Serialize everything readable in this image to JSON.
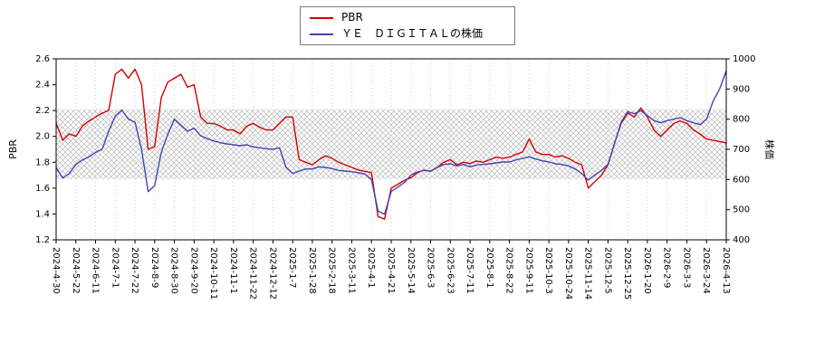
{
  "chart_data": {
    "type": "line",
    "title": "",
    "legend": [
      {
        "label": "PBR",
        "color": "#d40000"
      },
      {
        "label": "ＹＥ　ＤＩＧＩＴＡＬの株価",
        "color": "#4343b4"
      }
    ],
    "left_axis": {
      "label": "PBR",
      "min": 1.2,
      "max": 2.6,
      "ticks": [
        "1.2",
        "1.4",
        "1.6",
        "1.8",
        "2.0",
        "2.2",
        "2.4",
        "2.6"
      ]
    },
    "right_axis": {
      "label": "株価",
      "min": 400,
      "max": 1000,
      "ticks": [
        "400",
        "500",
        "600",
        "700",
        "800",
        "900",
        "1000"
      ]
    },
    "band": {
      "pbr_min": 1.67,
      "pbr_max": 2.21,
      "hatch_color": "#b8b8b8"
    },
    "grid": {
      "vertical_dotted": true,
      "color": "#cccccc"
    },
    "x_tick_labels": [
      "2024-4-30",
      "2024-5-22",
      "2024-6-11",
      "2024-7-1",
      "2024-7-22",
      "2024-8-9",
      "2024-8-30",
      "2024-9-20",
      "2024-10-11",
      "2024-11-1",
      "2024-11-22",
      "2024-12-12",
      "2025-1-7",
      "2025-1-28",
      "2025-2-18",
      "2025-3-11",
      "2025-4-1",
      "2025-4-21",
      "2025-5-14",
      "2025-6-3",
      "2025-6-23",
      "2025-7-11",
      "2025-8-1",
      "2025-8-22",
      "2025-9-11",
      "2025-10-3",
      "2025-10-24",
      "2025-11-14",
      "2025-12-5",
      "2025-12-25",
      "2026-1-20",
      "2026-2-9",
      "2026-3-3",
      "2026-3-24",
      "2026-4-13"
    ],
    "series": [
      {
        "name": "PBR",
        "axis": "left",
        "color": "#d40000",
        "values": [
          2.1,
          1.97,
          2.02,
          2.0,
          2.08,
          2.12,
          2.15,
          2.18,
          2.2,
          2.48,
          2.52,
          2.45,
          2.52,
          2.4,
          1.9,
          1.92,
          2.3,
          2.42,
          2.45,
          2.48,
          2.38,
          2.4,
          2.15,
          2.1,
          2.1,
          2.08,
          2.05,
          2.05,
          2.02,
          2.08,
          2.1,
          2.07,
          2.05,
          2.05,
          2.1,
          2.15,
          2.15,
          1.82,
          1.8,
          1.78,
          1.82,
          1.85,
          1.83,
          1.8,
          1.78,
          1.76,
          1.74,
          1.73,
          1.72,
          1.38,
          1.36,
          1.6,
          1.63,
          1.66,
          1.68,
          1.72,
          1.74,
          1.73,
          1.76,
          1.8,
          1.82,
          1.78,
          1.8,
          1.79,
          1.81,
          1.8,
          1.82,
          1.84,
          1.83,
          1.84,
          1.86,
          1.88,
          1.98,
          1.88,
          1.86,
          1.86,
          1.84,
          1.85,
          1.83,
          1.8,
          1.78,
          1.6,
          1.65,
          1.7,
          1.78,
          1.95,
          2.1,
          2.18,
          2.15,
          2.22,
          2.15,
          2.05,
          2.0,
          2.05,
          2.1,
          2.12,
          2.1,
          2.05,
          2.02,
          1.98,
          1.97,
          1.96,
          1.95
        ]
      },
      {
        "name": "ＹＥ　ＤＩＧＩＴＡＬの株価",
        "axis": "right",
        "color": "#4343b4",
        "values": [
          640,
          605,
          620,
          650,
          665,
          675,
          690,
          700,
          760,
          810,
          830,
          800,
          790,
          700,
          560,
          580,
          690,
          750,
          800,
          780,
          760,
          770,
          745,
          735,
          728,
          722,
          718,
          715,
          712,
          715,
          708,
          705,
          702,
          700,
          705,
          640,
          620,
          628,
          635,
          635,
          642,
          640,
          636,
          630,
          628,
          626,
          622,
          618,
          600,
          495,
          485,
          560,
          575,
          590,
          615,
          625,
          630,
          628,
          640,
          650,
          652,
          645,
          650,
          642,
          648,
          650,
          652,
          655,
          658,
          658,
          665,
          670,
          675,
          668,
          662,
          658,
          652,
          650,
          645,
          635,
          620,
          598,
          615,
          630,
          650,
          720,
          790,
          825,
          818,
          828,
          812,
          795,
          788,
          795,
          800,
          805,
          795,
          788,
          782,
          800,
          860,
          900,
          960
        ]
      }
    ]
  }
}
